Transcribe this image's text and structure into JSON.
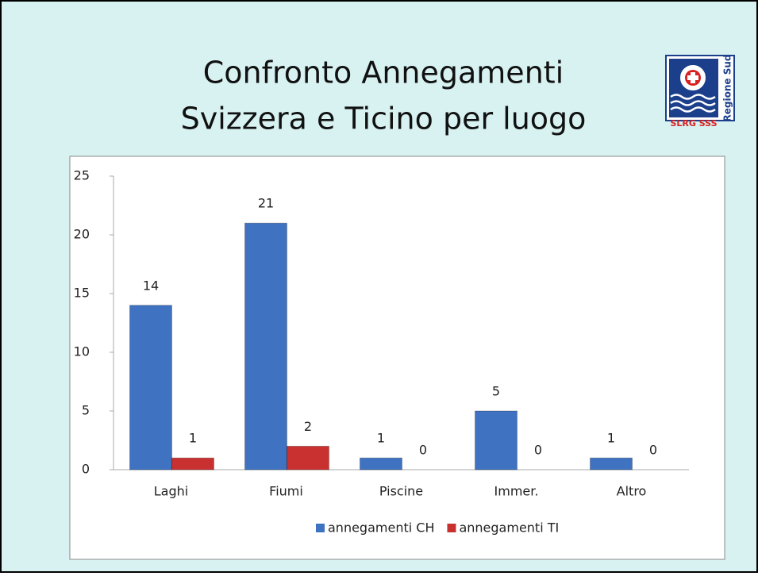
{
  "chart_data": {
    "type": "bar",
    "title": [
      "Confronto Annegamenti",
      "Svizzera e Ticino per luogo"
    ],
    "categories": [
      "Laghi",
      "Fiumi",
      "Piscine",
      "Immer.",
      "Altro"
    ],
    "series": [
      {
        "name": "annegamenti CH",
        "color": "#3f72c0",
        "values": [
          14,
          21,
          1,
          5,
          1
        ]
      },
      {
        "name": "annegamenti TI",
        "color": "#c8312f",
        "values": [
          1,
          2,
          0,
          0,
          0
        ]
      }
    ],
    "ylim": [
      0,
      25
    ],
    "yticks": [
      0,
      5,
      10,
      15,
      20,
      25
    ],
    "grid": false,
    "legend": "bottom"
  },
  "logo": {
    "name": "SLRG SSS",
    "region": "Regione Sud"
  }
}
